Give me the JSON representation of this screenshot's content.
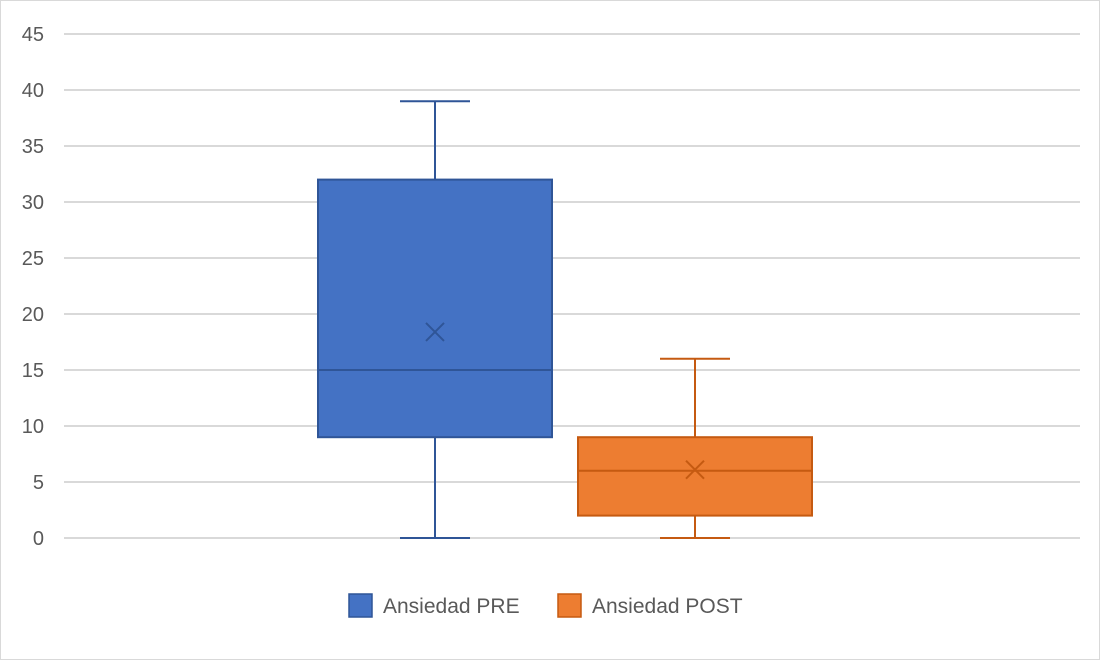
{
  "chart_data": {
    "type": "box",
    "title": "",
    "xlabel": "",
    "ylabel": "",
    "ylim": [
      0,
      45
    ],
    "yticks": [
      0,
      5,
      10,
      15,
      20,
      25,
      30,
      35,
      40,
      45
    ],
    "grid": true,
    "legend_position": "bottom",
    "series": [
      {
        "name": "Ansiedad PRE",
        "color": "#4472c4",
        "edge": "#2f5597",
        "min": 0,
        "q1": 9,
        "median": 15,
        "q3": 32,
        "max": 39,
        "mean": 18.4
      },
      {
        "name": "Ansiedad POST",
        "color": "#ed7d31",
        "edge": "#c55a11",
        "min": 0,
        "q1": 2,
        "median": 6,
        "q3": 9,
        "max": 16,
        "mean": 6.1
      }
    ]
  }
}
